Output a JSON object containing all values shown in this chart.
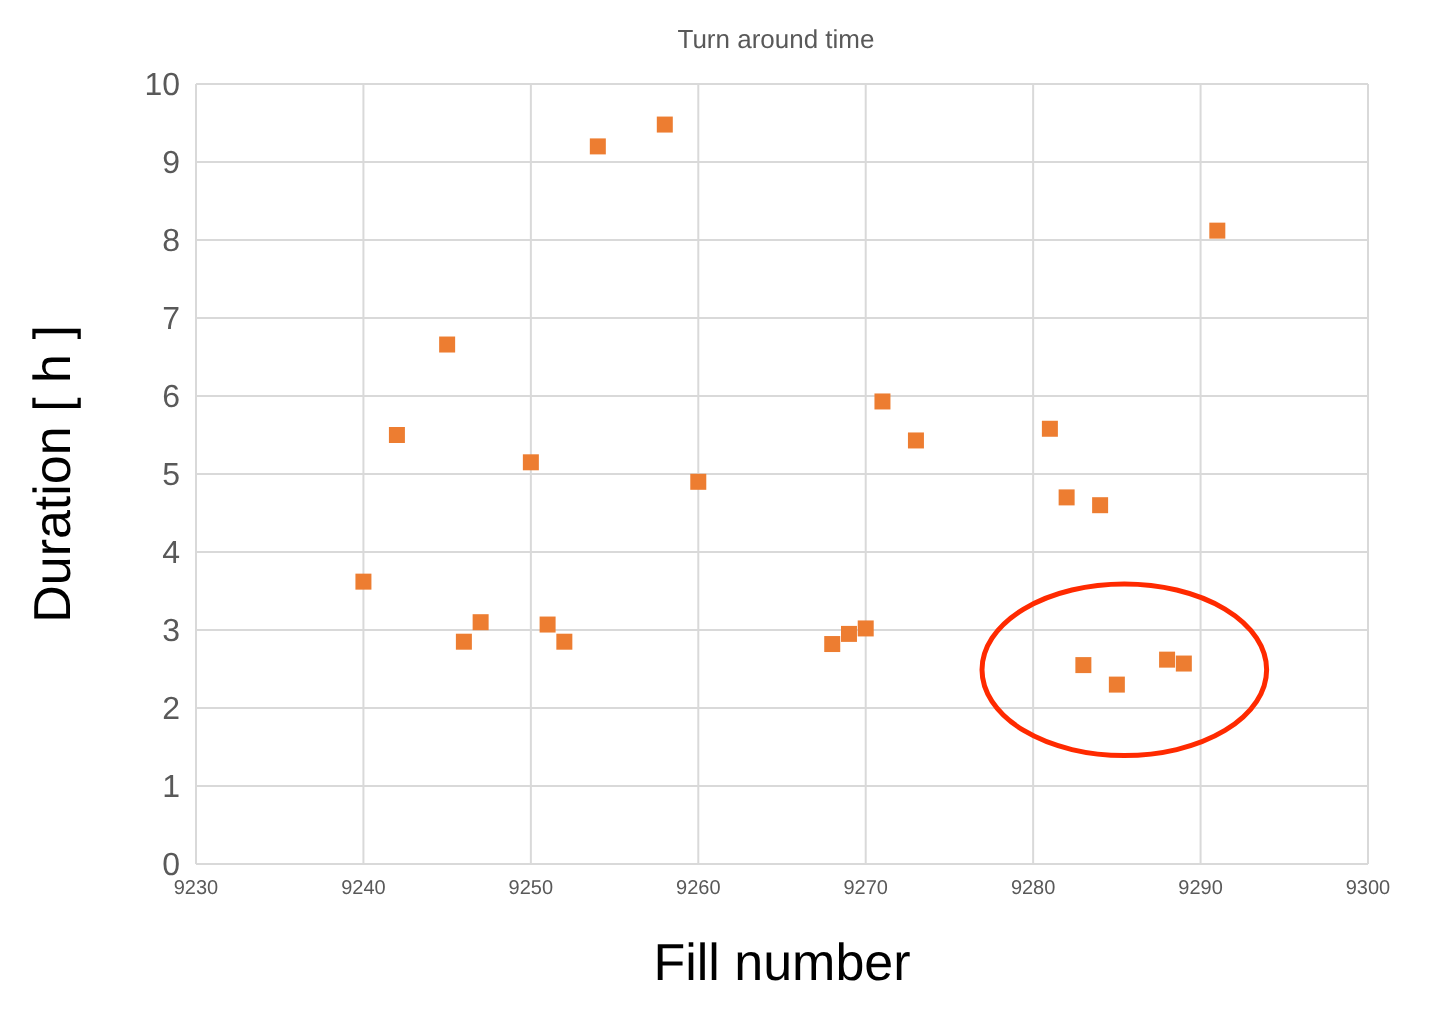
{
  "chart_data": {
    "type": "scatter",
    "title": "Turn around time",
    "xlabel": "Fill number",
    "ylabel": "Duration [ h ]",
    "x": [
      9240,
      9242,
      9245,
      9246,
      9247,
      9250,
      9251,
      9252,
      9254,
      9258,
      9260,
      9268,
      9269,
      9270,
      9271,
      9273,
      9281,
      9282,
      9283,
      9284,
      9285,
      9288,
      9289,
      9291
    ],
    "series": [
      {
        "color": "#ed7d31",
        "values": [
          3.62,
          5.5,
          6.66,
          2.85,
          3.1,
          5.15,
          3.07,
          2.85,
          9.2,
          9.48,
          4.9,
          2.82,
          2.95,
          3.02,
          5.93,
          5.43,
          5.58,
          4.7,
          2.55,
          4.6,
          2.3,
          2.62,
          2.57,
          8.12
        ]
      }
    ],
    "xlim": [
      9230,
      9300
    ],
    "xticks": [
      9230,
      9240,
      9250,
      9260,
      9270,
      9280,
      9290,
      9300
    ],
    "ylim": [
      0,
      10
    ],
    "yticks": [
      0,
      1,
      2,
      3,
      4,
      5,
      6,
      7,
      8,
      9,
      10
    ],
    "grid": true,
    "marker": "square"
  }
}
